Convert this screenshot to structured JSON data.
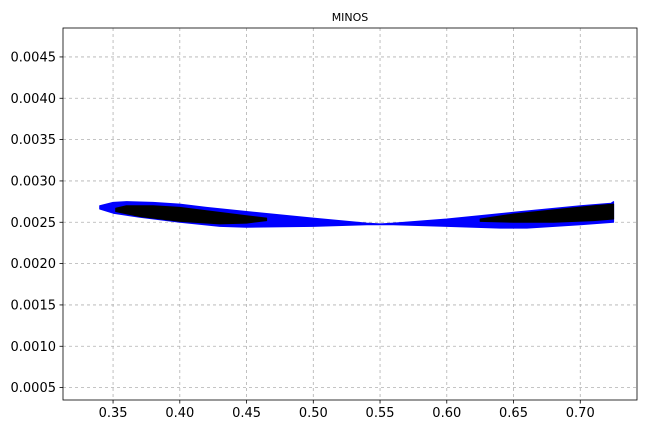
{
  "chart_data": {
    "type": "area",
    "title": "MINOS",
    "xlabel": "",
    "ylabel": "",
    "xlim": [
      0.3125,
      0.7425
    ],
    "ylim": [
      0.00035,
      0.00485
    ],
    "xticks": [
      0.35,
      0.4,
      0.45,
      0.5,
      0.55,
      0.6,
      0.65,
      0.7
    ],
    "xtick_labels": [
      "0.35",
      "0.40",
      "0.45",
      "0.50",
      "0.55",
      "0.60",
      "0.65",
      "0.70"
    ],
    "yticks": [
      0.0005,
      0.001,
      0.0015,
      0.002,
      0.0025,
      0.003,
      0.0035,
      0.004,
      0.0045
    ],
    "ytick_labels": [
      "0.0005",
      "0.0010",
      "0.0015",
      "0.0020",
      "0.0025",
      "0.0030",
      "0.0035",
      "0.0040",
      "0.0045"
    ],
    "grid": true,
    "series": [
      {
        "color": "#0000ff",
        "upper": [
          [
            0.34,
            0.0027
          ],
          [
            0.35,
            0.00274
          ],
          [
            0.36,
            0.00275
          ],
          [
            0.38,
            0.00274
          ],
          [
            0.4,
            0.00272
          ],
          [
            0.42,
            0.00268
          ],
          [
            0.45,
            0.00263
          ],
          [
            0.5,
            0.00255
          ],
          [
            0.54,
            0.00249
          ],
          [
            0.55,
            0.00248
          ],
          [
            0.56,
            0.00249
          ],
          [
            0.6,
            0.00254
          ],
          [
            0.65,
            0.00262
          ],
          [
            0.7,
            0.0027
          ],
          [
            0.723,
            0.00273
          ],
          [
            0.725,
            0.00275
          ]
        ],
        "lower": [
          [
            0.34,
            0.00266
          ],
          [
            0.35,
            0.00261
          ],
          [
            0.37,
            0.00256
          ],
          [
            0.4,
            0.0025
          ],
          [
            0.43,
            0.00245
          ],
          [
            0.45,
            0.00244
          ],
          [
            0.5,
            0.00245
          ],
          [
            0.54,
            0.00247
          ],
          [
            0.55,
            0.00247
          ],
          [
            0.56,
            0.00247
          ],
          [
            0.6,
            0.00245
          ],
          [
            0.64,
            0.00243
          ],
          [
            0.66,
            0.00243
          ],
          [
            0.7,
            0.00247
          ],
          [
            0.725,
            0.0025
          ]
        ]
      },
      {
        "color": "#000000",
        "upper": [
          [
            0.352,
            0.00267
          ],
          [
            0.36,
            0.0027
          ],
          [
            0.38,
            0.0027
          ],
          [
            0.4,
            0.00268
          ],
          [
            0.42,
            0.00264
          ],
          [
            0.45,
            0.00258
          ],
          [
            0.465,
            0.00255
          ]
        ],
        "lower": [
          [
            0.352,
            0.00263
          ],
          [
            0.37,
            0.00257
          ],
          [
            0.4,
            0.00251
          ],
          [
            0.43,
            0.00248
          ],
          [
            0.45,
            0.00249
          ],
          [
            0.465,
            0.00252
          ]
        ]
      },
      {
        "color": "#000000",
        "upper": [
          [
            0.625,
            0.00254
          ],
          [
            0.65,
            0.0026
          ],
          [
            0.68,
            0.00265
          ],
          [
            0.71,
            0.0027
          ],
          [
            0.725,
            0.00272
          ]
        ],
        "lower": [
          [
            0.625,
            0.00251
          ],
          [
            0.65,
            0.0025
          ],
          [
            0.68,
            0.0025
          ],
          [
            0.71,
            0.00252
          ],
          [
            0.725,
            0.00254
          ]
        ]
      }
    ]
  }
}
